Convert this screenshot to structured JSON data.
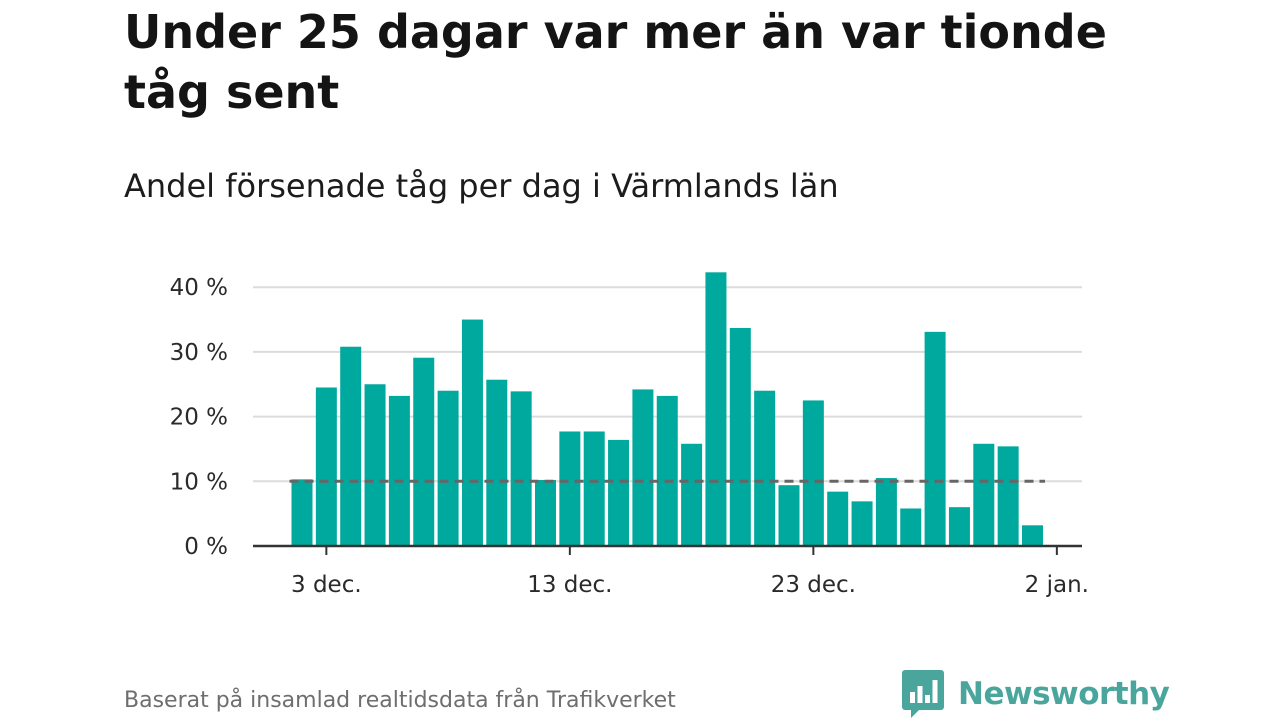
{
  "title": "Under 25 dagar var mer än var tionde tåg sent",
  "subtitle": "Andel försenade tåg per dag i Värmlands län",
  "source": "Baserat på insamlad realtidsdata från Trafikverket",
  "brand": {
    "name": "Newsworthy",
    "logo_icon": "bar-chart-speech-bubble-icon"
  },
  "colors": {
    "bars": "#00a99d",
    "reference_line": "#666666",
    "grid": "#dcdcdc",
    "axis": "#333333",
    "brand": "#4aa69d"
  },
  "chart_data": {
    "type": "bar",
    "xlabel": "",
    "ylabel": "",
    "ylim": [
      0,
      42
    ],
    "yticks": [
      0,
      10,
      20,
      30,
      40
    ],
    "ytick_labels": [
      "0 %",
      "10 %",
      "20 %",
      "30 %",
      "40 %"
    ],
    "x": [
      "2024-12-02",
      "2024-12-03",
      "2024-12-04",
      "2024-12-05",
      "2024-12-06",
      "2024-12-07",
      "2024-12-08",
      "2024-12-09",
      "2024-12-10",
      "2024-12-11",
      "2024-12-12",
      "2024-12-13",
      "2024-12-14",
      "2024-12-15",
      "2024-12-16",
      "2024-12-17",
      "2024-12-18",
      "2024-12-19",
      "2024-12-20",
      "2024-12-21",
      "2024-12-22",
      "2024-12-23",
      "2024-12-24",
      "2024-12-25",
      "2024-12-26",
      "2024-12-27",
      "2024-12-28",
      "2024-12-29",
      "2024-12-30",
      "2024-12-31",
      "2025-01-01"
    ],
    "values": [
      10.3,
      24.5,
      30.8,
      25.0,
      23.2,
      29.1,
      24.0,
      35.0,
      25.7,
      23.9,
      10.2,
      17.7,
      17.7,
      16.4,
      24.2,
      23.2,
      15.8,
      42.3,
      33.7,
      24.0,
      9.4,
      22.5,
      8.4,
      6.9,
      10.5,
      5.8,
      33.1,
      6.0,
      15.8,
      15.4,
      3.2
    ],
    "xticks": [
      "2024-12-03",
      "2024-12-13",
      "2024-12-23",
      "2025-01-02"
    ],
    "xtick_labels": [
      "3 dec.",
      "13 dec.",
      "23 dec.",
      "2 jan."
    ],
    "reference_line": {
      "value": 10,
      "style": "dashed"
    },
    "grid": true,
    "legend": "none"
  }
}
